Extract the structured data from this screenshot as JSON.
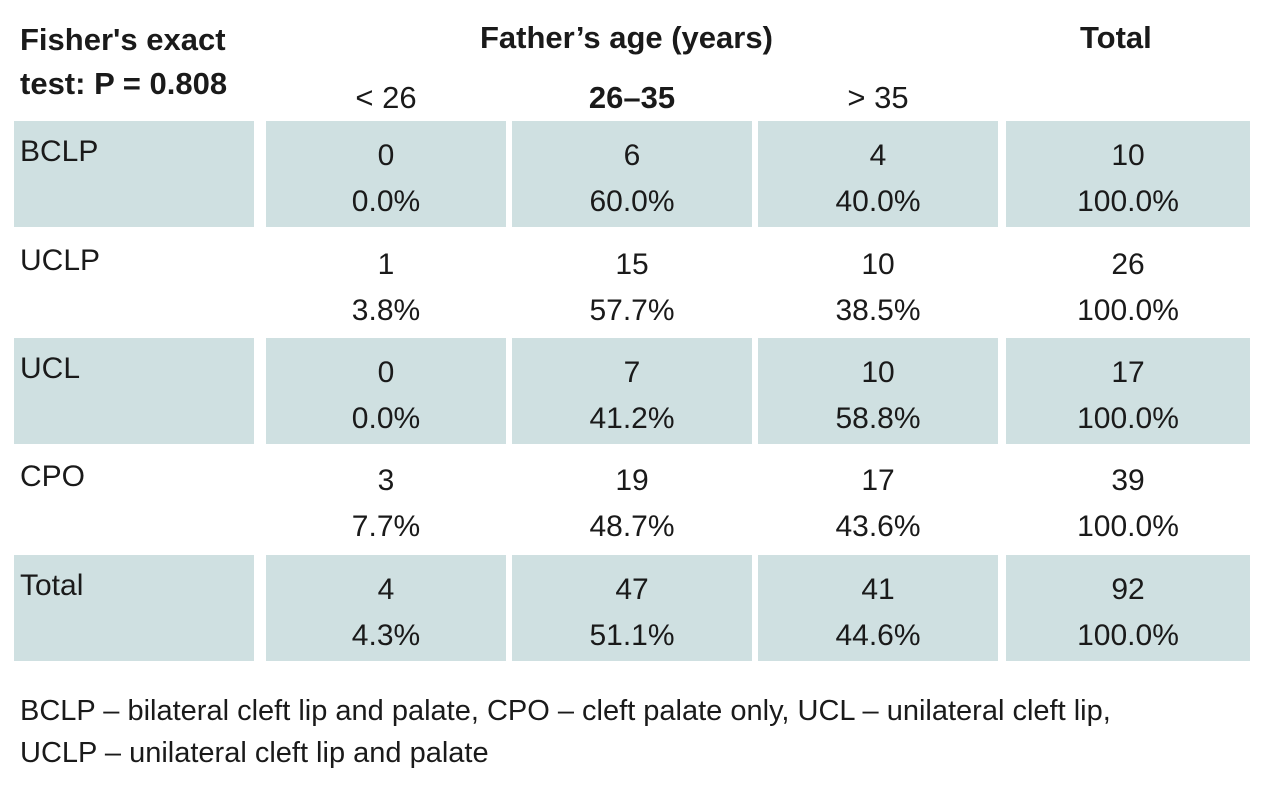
{
  "header": {
    "stat_line1": "Fisher's exact",
    "stat_line2": "test: P = 0.808",
    "group_title": "Father’s age (years)",
    "total_title": "Total",
    "columns": [
      "< 26",
      "26–35",
      "> 35"
    ]
  },
  "rows": [
    {
      "label": "BCLP",
      "cells": [
        {
          "n": "0",
          "pct": "0.0%"
        },
        {
          "n": "6",
          "pct": "60.0%"
        },
        {
          "n": "4",
          "pct": "40.0%"
        },
        {
          "n": "10",
          "pct": "100.0%"
        }
      ]
    },
    {
      "label": "UCLP",
      "cells": [
        {
          "n": "1",
          "pct": "3.8%"
        },
        {
          "n": "15",
          "pct": "57.7%"
        },
        {
          "n": "10",
          "pct": "38.5%"
        },
        {
          "n": "26",
          "pct": "100.0%"
        }
      ]
    },
    {
      "label": "UCL",
      "cells": [
        {
          "n": "0",
          "pct": "0.0%"
        },
        {
          "n": "7",
          "pct": "41.2%"
        },
        {
          "n": "10",
          "pct": "58.8%"
        },
        {
          "n": "17",
          "pct": "100.0%"
        }
      ]
    },
    {
      "label": "CPO",
      "cells": [
        {
          "n": "3",
          "pct": "7.7%"
        },
        {
          "n": "19",
          "pct": "48.7%"
        },
        {
          "n": "17",
          "pct": "43.6%"
        },
        {
          "n": "39",
          "pct": "100.0%"
        }
      ]
    },
    {
      "label": "Total",
      "cells": [
        {
          "n": "4",
          "pct": "4.3%"
        },
        {
          "n": "47",
          "pct": "51.1%"
        },
        {
          "n": "41",
          "pct": "44.6%"
        },
        {
          "n": "92",
          "pct": "100.0%"
        }
      ]
    }
  ],
  "footnote": {
    "line1": "BCLP – bilateral cleft lip and palate, CPO – cleft palate only, UCL – unilateral cleft lip,",
    "line2": "UCLP – unilateral cleft lip and palate"
  },
  "colors": {
    "shade": "#cfe0e1"
  }
}
